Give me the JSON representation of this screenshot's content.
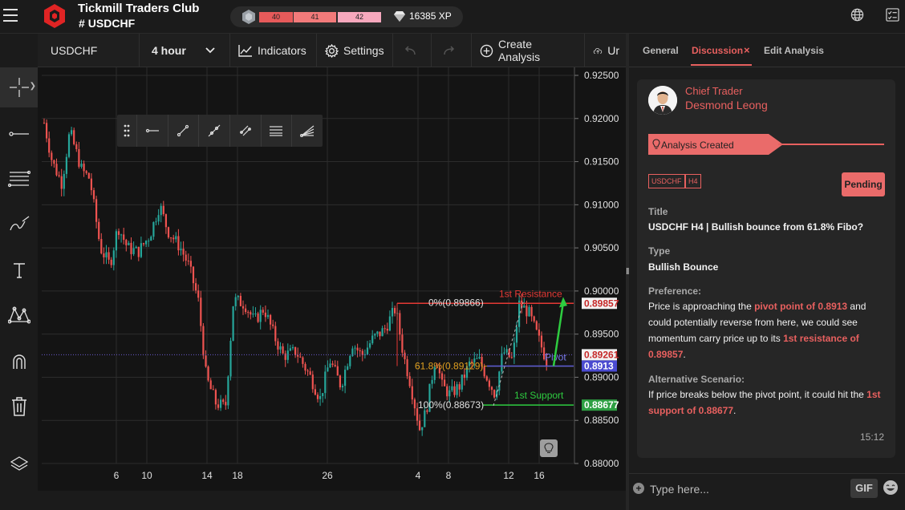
{
  "app": {
    "title": "Tickmill Traders Club",
    "channel_hash": "#",
    "channel": "USDCHF"
  },
  "xp": {
    "levels": [
      "40",
      "41",
      "42"
    ],
    "value": "16385 XP"
  },
  "toolbar": {
    "symbol": "USDCHF",
    "interval": "4 hour",
    "indicators": "Indicators",
    "settings": "Settings",
    "create_analysis": "Create Analysis",
    "truncated": "Ur"
  },
  "chart_data": {
    "type": "candlestick",
    "ylim": [
      0.88,
      0.925
    ],
    "y_ticks": [
      "0.92500",
      "0.92000",
      "0.91500",
      "0.91000",
      "0.90500",
      "0.90000",
      "0.89500",
      "0.89000",
      "0.88500",
      "0.88000"
    ],
    "x_ticks": [
      "6",
      "10",
      "14",
      "18",
      "26",
      "4",
      "8",
      "12",
      "16"
    ],
    "price_tags": {
      "resistance": "0.89857",
      "current": "0.89261",
      "pivot": "0.8913",
      "support": "0.88677"
    },
    "annotations": {
      "resistance_label": "1st Resistance",
      "support_label": "1st Support",
      "pivot_label": "Pivot",
      "fib0": "0%(0.89866)",
      "fib618": "61.8%(0.89129)",
      "fib100": "100%(0.88673)"
    },
    "colors": {
      "up": "#26a69a",
      "down": "#ef5350",
      "resistance": "#e53935",
      "support": "#2ecc40",
      "pivot": "#5b5bd6",
      "fib": "#e0a020"
    }
  },
  "tabs": {
    "general": "General",
    "discussion": "Discussion",
    "close": "×",
    "edit": "Edit Analysis"
  },
  "analysis": {
    "role": "Chief Trader",
    "author": "Desmond Leong",
    "status_event": "Analysis Created",
    "tags": [
      "USDCHF",
      "H4"
    ],
    "status": "Pending",
    "title_label": "Title",
    "title": "USDCHF H4 | Bullish bounce from 61.8% Fibo?",
    "type_label": "Type",
    "type": "Bullish Bounce",
    "preference_label": "Preference:",
    "pref_1": "Price is approaching the ",
    "pref_hl1": "pivot point of 0.8913",
    "pref_2": " and could potentially reverse from here, we could see momentum carry price up to its ",
    "pref_hl2": "1st resistance of 0.89857",
    "pref_3": ".",
    "alt_label": "Alternative Scenario:",
    "alt_1": "If price breaks below the pivot point, it could hit the ",
    "alt_hl": "1st support of 0.88677",
    "alt_2": ".",
    "time": "15:12"
  },
  "composer": {
    "placeholder": "Type here...",
    "gif": "GIF"
  },
  "accent": "#e8605f"
}
